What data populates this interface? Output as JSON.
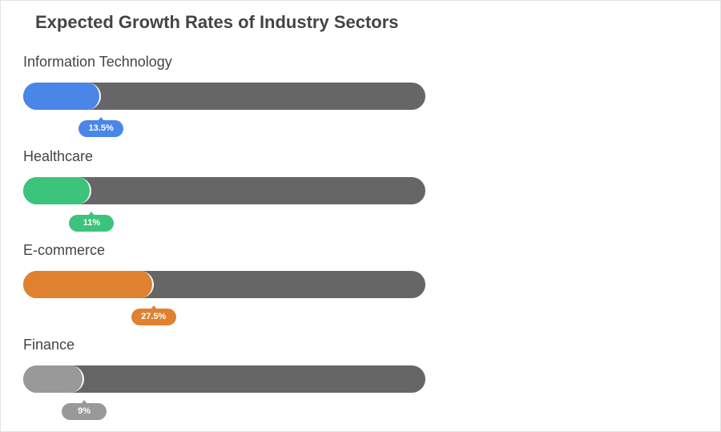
{
  "chart_data": {
    "type": "bar",
    "orientation": "horizontal-progress",
    "title": "Expected Growth Rates of Industry Sectors",
    "categories": [
      "Information Technology",
      "Healthcare",
      "E-commerce",
      "Finance"
    ],
    "values": [
      13.5,
      11,
      27.5,
      9
    ],
    "value_labels": [
      "13.5%",
      "11%",
      "27.5%",
      "9%"
    ],
    "unit": "%",
    "xlim": [
      0,
      100
    ],
    "colors": [
      "#4a86e8",
      "#3cc47c",
      "#e0812f",
      "#999999"
    ],
    "track_color": "#666666",
    "grid": false
  }
}
